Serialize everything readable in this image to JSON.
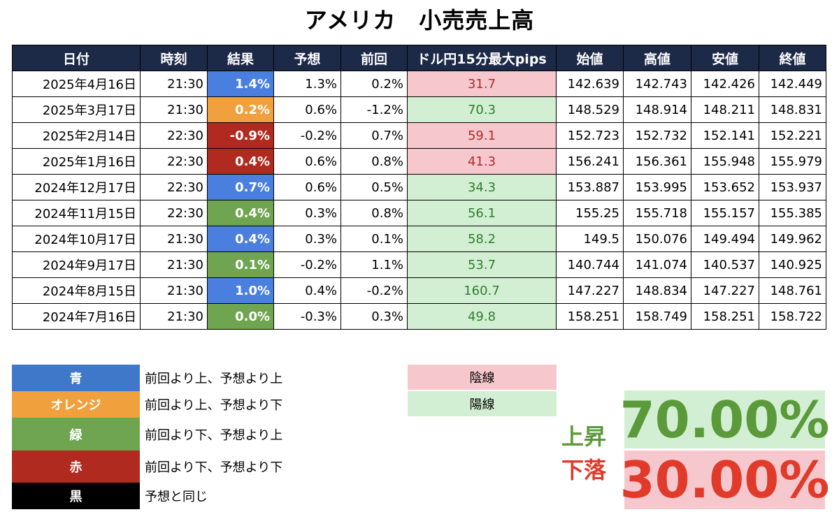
{
  "title": "アメリカ　小売売上高",
  "columns": [
    "日付",
    "時刻",
    "結果",
    "予想",
    "前回",
    "ドル円15分最大pips",
    "始値",
    "高値",
    "安値",
    "終値"
  ],
  "rows": [
    {
      "date": "2025年4月16日",
      "time": "21:30",
      "result": "1.4%",
      "result_color": "blue",
      "forecast": "1.3%",
      "previous": "0.2%",
      "pips": "31.7",
      "pips_color": "pink",
      "open": "142.639",
      "high": "142.743",
      "low": "142.426",
      "close": "142.449"
    },
    {
      "date": "2025年3月17日",
      "time": "21:30",
      "result": "0.2%",
      "result_color": "orange",
      "forecast": "0.6%",
      "previous": "-1.2%",
      "pips": "70.3",
      "pips_color": "green",
      "open": "148.529",
      "high": "148.914",
      "low": "148.211",
      "close": "148.831"
    },
    {
      "date": "2025年2月14日",
      "time": "22:30",
      "result": "-0.9%",
      "result_color": "red",
      "forecast": "-0.2%",
      "previous": "0.7%",
      "pips": "59.1",
      "pips_color": "pink",
      "open": "152.723",
      "high": "152.732",
      "low": "152.141",
      "close": "152.221"
    },
    {
      "date": "2025年1月16日",
      "time": "22:30",
      "result": "0.4%",
      "result_color": "red",
      "forecast": "0.6%",
      "previous": "0.8%",
      "pips": "41.3",
      "pips_color": "pink",
      "open": "156.241",
      "high": "156.361",
      "low": "155.948",
      "close": "155.979"
    },
    {
      "date": "2024年12月17日",
      "time": "22:30",
      "result": "0.7%",
      "result_color": "blue",
      "forecast": "0.6%",
      "previous": "0.5%",
      "pips": "34.3",
      "pips_color": "green",
      "open": "153.887",
      "high": "153.995",
      "low": "153.652",
      "close": "153.937"
    },
    {
      "date": "2024年11月15日",
      "time": "22:30",
      "result": "0.4%",
      "result_color": "green",
      "forecast": "0.3%",
      "previous": "0.8%",
      "pips": "56.1",
      "pips_color": "green",
      "open": "155.25",
      "high": "155.718",
      "low": "155.157",
      "close": "155.385"
    },
    {
      "date": "2024年10月17日",
      "time": "21:30",
      "result": "0.4%",
      "result_color": "blue",
      "forecast": "0.3%",
      "previous": "0.1%",
      "pips": "58.2",
      "pips_color": "green",
      "open": "149.5",
      "high": "150.076",
      "low": "149.494",
      "close": "149.962"
    },
    {
      "date": "2024年9月17日",
      "time": "21:30",
      "result": "0.1%",
      "result_color": "green",
      "forecast": "-0.2%",
      "previous": "1.1%",
      "pips": "53.7",
      "pips_color": "green",
      "open": "140.744",
      "high": "141.074",
      "low": "140.537",
      "close": "140.925"
    },
    {
      "date": "2024年8月15日",
      "time": "21:30",
      "result": "1.0%",
      "result_color": "blue",
      "forecast": "0.4%",
      "previous": "-0.2%",
      "pips": "160.7",
      "pips_color": "green",
      "open": "147.227",
      "high": "148.834",
      "low": "147.227",
      "close": "148.761"
    },
    {
      "date": "2024年7月16日",
      "time": "21:30",
      "result": "0.0%",
      "result_color": "green",
      "forecast": "-0.3%",
      "previous": "0.3%",
      "pips": "49.8",
      "pips_color": "green",
      "open": "158.251",
      "high": "158.749",
      "low": "158.251",
      "close": "158.722"
    }
  ],
  "legend": [
    {
      "label": "青",
      "desc": "前回より上、予想より上",
      "color": "#3f78c8"
    },
    {
      "label": "オレンジ",
      "desc": "前回より上、予想より下",
      "color": "#f0a03c"
    },
    {
      "label": "緑",
      "desc": "前回より下、予想より上",
      "color": "#6fa550"
    },
    {
      "label": "赤",
      "desc": "前回より下、予想より下",
      "color": "#b02a20"
    },
    {
      "label": "黒",
      "desc": "予想と同じ",
      "color": "#000000"
    }
  ],
  "candles": {
    "bearish": "陰線",
    "bullish": "陽線"
  },
  "stats": {
    "up_label": "上昇",
    "up_value": "70.00%",
    "down_label": "下落",
    "down_value": "30.00%"
  }
}
